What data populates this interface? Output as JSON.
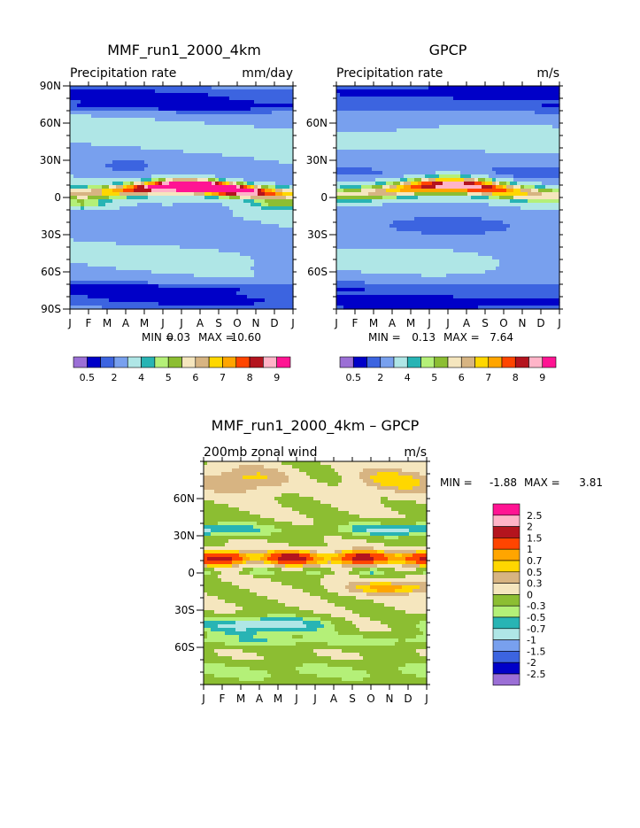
{
  "chart_data": [
    {
      "type": "heatmap",
      "title": "MMF_run1_2000_4km",
      "subtitle_left": "Precipitation rate",
      "subtitle_right": "mm/day",
      "x_ticks": [
        "J",
        "F",
        "M",
        "A",
        "M",
        "J",
        "J",
        "A",
        "S",
        "O",
        "N",
        "D",
        "J"
      ],
      "y_ticks": [
        "90N",
        "60N",
        "30N",
        "0",
        "30S",
        "60S",
        "90S"
      ],
      "stats": {
        "min_label": "MIN =",
        "min": "0.03",
        "max_label": "MAX =",
        "max": "10.60"
      },
      "colorbar_labels": [
        "0.5",
        "2",
        "4",
        "5",
        "6",
        "7",
        "8",
        "9"
      ],
      "colors": [
        "#9b6fd6",
        "#0000c8",
        "#3c64e0",
        "#78a0ee",
        "#afe6e6",
        "#28b4b4",
        "#b4f078",
        "#8cbe32",
        "#f5e6be",
        "#d7b482",
        "#ffd700",
        "#ffa500",
        "#ff4500",
        "#b4141e",
        "#ffb4c8",
        "#ff1493"
      ]
    },
    {
      "type": "heatmap",
      "title": "GPCP",
      "subtitle_left": "Precipitation rate",
      "subtitle_right": "m/s",
      "x_ticks": [
        "J",
        "F",
        "M",
        "A",
        "M",
        "J",
        "J",
        "A",
        "S",
        "O",
        "N",
        "D",
        "J"
      ],
      "y_ticks": [
        "60N",
        "30N",
        "0",
        "30S",
        "60S"
      ],
      "stats": {
        "min_label": "MIN =",
        "min": "0.13",
        "max_label": "MAX =",
        "max": "7.64"
      },
      "colorbar_labels": [
        "0.5",
        "2",
        "4",
        "5",
        "6",
        "7",
        "8",
        "9"
      ]
    },
    {
      "type": "heatmap",
      "title": "MMF_run1_2000_4km – GPCP",
      "subtitle_left": "200mb zonal wind",
      "subtitle_right": "m/s",
      "x_ticks": [
        "J",
        "F",
        "M",
        "A",
        "M",
        "J",
        "J",
        "A",
        "S",
        "O",
        "N",
        "D",
        "J"
      ],
      "y_ticks": [
        "60N",
        "30N",
        "0",
        "30S",
        "60S"
      ],
      "stats": {
        "min_label": "MIN =",
        "min": "-1.88",
        "max_label": "MAX =",
        "max": "3.81"
      },
      "colorbar_labels": [
        "2.5",
        "2",
        "1.5",
        "1",
        "0.7",
        "0.5",
        "0.3",
        "0",
        "-0.3",
        "-0.5",
        "-0.7",
        "-1",
        "-1.5",
        "-2",
        "-2.5"
      ],
      "diff_colors": [
        "#ff1493",
        "#ffb4c8",
        "#b4141e",
        "#ff4500",
        "#ffa500",
        "#ffd700",
        "#d7b482",
        "#f5e6be",
        "#8cbe32",
        "#b4f078",
        "#28b4b4",
        "#afe6e6",
        "#78a0ee",
        "#3c64e0",
        "#0000c8",
        "#9b6fd6"
      ]
    }
  ]
}
